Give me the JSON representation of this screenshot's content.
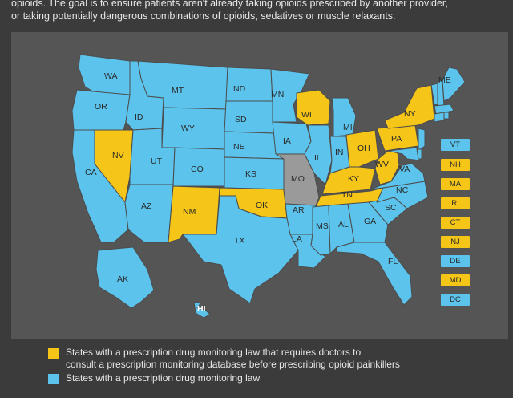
{
  "colors": {
    "requires": "#f5c518",
    "has_law": "#5bc3ec",
    "none": "#9a9a9a",
    "panel": "#555555",
    "background": "#3b3b3b"
  },
  "intro": {
    "line1": "opioids. The goal is to ensure patients aren't already taking opioids prescribed by another provider,",
    "line2": "or taking potentially dangerous combinations of opioids, sedatives or muscle relaxants."
  },
  "states": {
    "WA": "has_law",
    "OR": "has_law",
    "CA": "has_law",
    "NV": "requires",
    "ID": "has_law",
    "MT": "has_law",
    "WY": "has_law",
    "UT": "has_law",
    "AZ": "has_law",
    "CO": "has_law",
    "NM": "requires",
    "ND": "has_law",
    "SD": "has_law",
    "NE": "has_law",
    "KS": "has_law",
    "OK": "requires",
    "TX": "has_law",
    "MN": "has_law",
    "IA": "has_law",
    "MO": "none",
    "AR": "has_law",
    "LA": "has_law",
    "WI": "requires",
    "IL": "has_law",
    "MI": "has_law",
    "IN": "has_law",
    "OH": "requires",
    "KY": "requires",
    "TN": "requires",
    "MS": "has_law",
    "AL": "has_law",
    "GA": "has_law",
    "FL": "has_law",
    "SC": "has_law",
    "NC": "has_law",
    "VA": "has_law",
    "WV": "requires",
    "PA": "requires",
    "NY": "requires",
    "ME": "has_law",
    "AK": "has_law",
    "HI": "has_law"
  },
  "northeast_boxes": [
    {
      "code": "VT",
      "status": "has_law"
    },
    {
      "code": "NH",
      "status": "requires"
    },
    {
      "code": "MA",
      "status": "requires"
    },
    {
      "code": "RI",
      "status": "requires"
    },
    {
      "code": "CT",
      "status": "requires"
    },
    {
      "code": "NJ",
      "status": "requires"
    },
    {
      "code": "DE",
      "status": "has_law"
    },
    {
      "code": "MD",
      "status": "requires"
    },
    {
      "code": "DC",
      "status": "has_law"
    }
  ],
  "legend": [
    {
      "status": "requires",
      "text_line1": "States with a prescription drug monitoring law that requires doctors to",
      "text_line2": "consult a prescription monitoring database before prescribing opioid painkillers"
    },
    {
      "status": "has_law",
      "text_line1": "States with a prescription drug monitoring law",
      "text_line2": ""
    }
  ]
}
